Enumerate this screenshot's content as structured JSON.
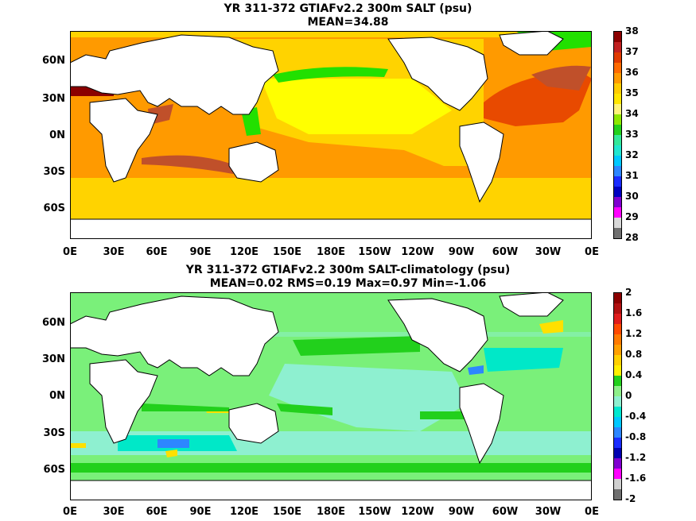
{
  "panels": [
    {
      "title_line1": "YR 311-372 GTIAFv2.2 300m SALT (psu)",
      "title_line2": "MEAN=34.88",
      "colorbar_labels": [
        "38",
        "37",
        "36",
        "35",
        "34",
        "33",
        "32",
        "31",
        "30",
        "29",
        "28"
      ],
      "colorbar_colors": [
        "#8b0000",
        "#c02020",
        "#e03a00",
        "#ff6a00",
        "#ff9a00",
        "#ffcc00",
        "#ffe600",
        "#fff47a",
        "#8ee800",
        "#22d01c",
        "#33e89a",
        "#22e6d0",
        "#00c8ff",
        "#2d86ff",
        "#1a2cff",
        "#0000c0",
        "#8000d0",
        "#ff00ff",
        "#d8d8d8",
        "#707070"
      ]
    },
    {
      "title_line1": "YR 311-372 GTIAFv2.2 300m SALT-climatology (psu)",
      "title_line2": "MEAN=0.02   RMS=0.19   Max=0.97   Min=-1.06",
      "colorbar_labels": [
        "2",
        "1.6",
        "1.2",
        "0.8",
        "0.4",
        "0",
        "-0.4",
        "-0.8",
        "-1.2",
        "-1.6",
        "-2"
      ],
      "colorbar_colors": [
        "#8b0000",
        "#b01010",
        "#e01c1c",
        "#ff4a00",
        "#ff7a00",
        "#ffa000",
        "#ffd000",
        "#fff000",
        "#22d01c",
        "#8ef08a",
        "#8ef0d0",
        "#00e8d0",
        "#00c8ff",
        "#2d86ff",
        "#1a2cff",
        "#0000b0",
        "#8000d0",
        "#ff00ff",
        "#d0d0d0",
        "#707070"
      ]
    }
  ],
  "y_axis_labels": [
    "60N",
    "30N",
    "0N",
    "30S",
    "60S"
  ],
  "x_axis_labels": [
    "0E",
    "30E",
    "60E",
    "90E",
    "120E",
    "150E",
    "180E",
    "150W",
    "120W",
    "90W",
    "60W",
    "30W",
    "0E"
  ],
  "colors": {
    "land": "#ffffff",
    "coast": "#000000",
    "salt_dark": "#c0502a",
    "salt_orange": "#ff9a00",
    "salt_yellow": "#ffd300",
    "salt_lightyellow": "#ffff00",
    "salt_green": "#22e000",
    "salt_red": "#8b0000",
    "anom_green": "#7af07a",
    "anom_cyan": "#00e8c8",
    "anom_blue": "#2d86ff",
    "anom_yellow": "#ffe000"
  }
}
